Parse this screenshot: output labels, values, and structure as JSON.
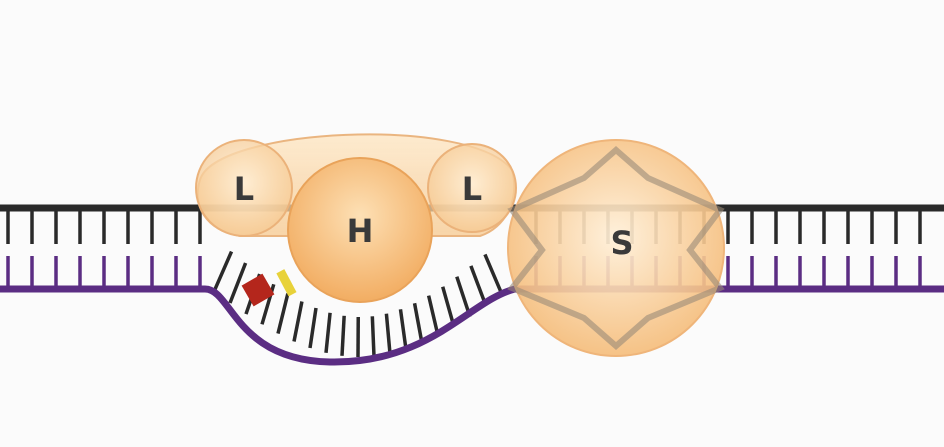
{
  "diagram": {
    "labels": {
      "left_light": "L",
      "heavy": "H",
      "right_light": "L",
      "side": "S"
    },
    "colors": {
      "background": "#fbfbfb",
      "top_strand": "#2a2a2a",
      "bottom_strand": "#5b2d83",
      "base_pair": "#2a2a2a",
      "base_pair_bottom": "#5b2d83",
      "protein_fill_light": "#fde3bd",
      "protein_fill": "#f6c27c",
      "protein_edge": "#e9a35a",
      "label_text": "#3a3a3a",
      "marker_red": "#b4261c",
      "marker_yellow": "#e8d23a",
      "star_outline": "#9a8a78"
    }
  }
}
